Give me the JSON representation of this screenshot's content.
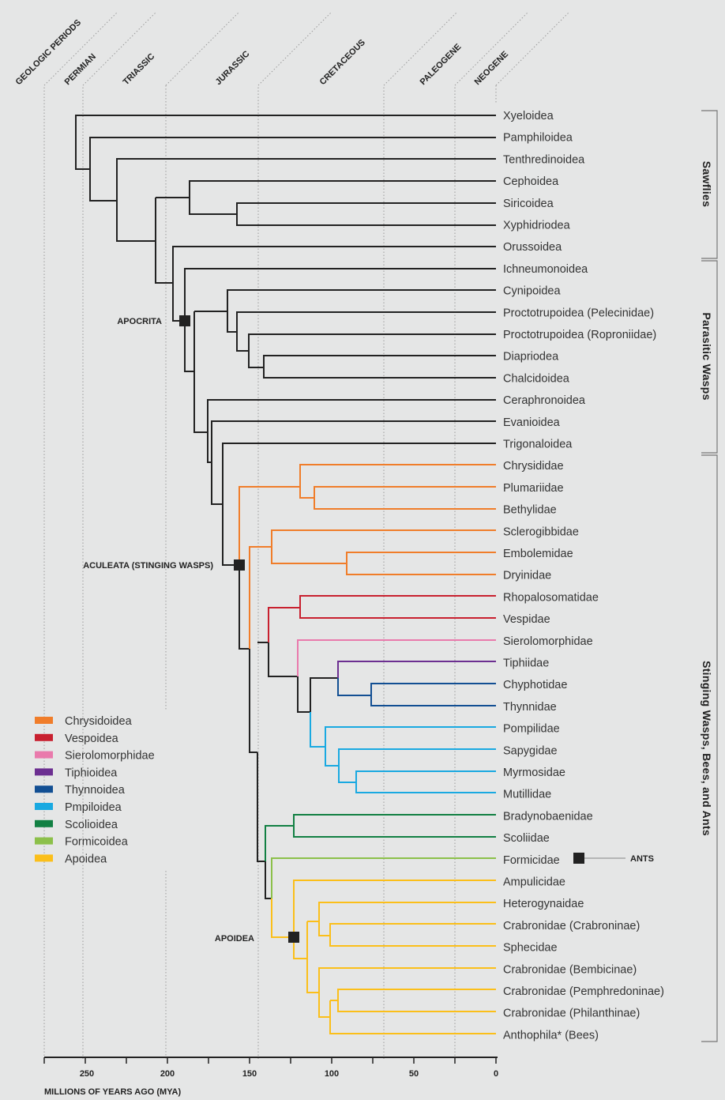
{
  "header": {
    "periods_title": "GEOLOGIC PERIODS",
    "periods": [
      "PERMIAN",
      "TRIASSIC",
      "JURASSIC",
      "CRETACEOUS",
      "PALEOGENE",
      "NEOGENE"
    ]
  },
  "axis": {
    "label": "MILLIONS OF YEARS AGO (MYA)",
    "tick_labels": [
      "250",
      "200",
      "150",
      "100",
      "50",
      "0"
    ]
  },
  "taxa": [
    "Xyeloidea",
    "Pamphiloidea",
    "Tenthredinoidea",
    "Cephoidea",
    "Siricoidea",
    "Xyphidriodea",
    "Orussoidea",
    "Ichneumonoidea",
    "Cynipoidea",
    "Proctotrupoidea (Pelecinidae)",
    "Proctotrupoidea (Roproniidae)",
    "Diapriodea",
    "Chalcidoidea",
    "Ceraphronoidea",
    "Evanioidea",
    "Trigonaloidea",
    "Chrysididae",
    "Plumariidae",
    "Bethylidae",
    "Sclerogibbidae",
    "Embolemidae",
    "Dryinidae",
    "Rhopalosomatidae",
    "Vespidae",
    "Sierolomorphidae",
    "Tiphiidae",
    "Chyphotidae",
    "Thynnidae",
    "Pompilidae",
    "Sapygidae",
    "Myrmosidae",
    "Mutillidae",
    "Bradynobaenidae",
    "Scoliidae",
    "Formicidae",
    "Ampulicidae",
    "Heterogynaidae",
    "Crabronidae (Crabroninae)",
    "Sphecidae",
    "Crabronidae (Bembicinae)",
    "Crabronidae (Pemphredoninae)",
    "Crabronidae (Philanthinae)",
    "Anthophila* (Bees)"
  ],
  "groups": [
    "Sawflies",
    "Parasitic Wasps",
    "Stinging Wasps, Bees, and Ants"
  ],
  "clade_labels": {
    "apocrita": "APOCRITA",
    "aculeata": "ACULEATA (STINGING WASPS)",
    "apoidea": "APOIDEA",
    "ants": "ANTS"
  },
  "legend": [
    {
      "label": "Chrysidoidea",
      "color": "#f07d2a"
    },
    {
      "label": "Vespoidea",
      "color": "#c8202f"
    },
    {
      "label": "Sierolomorphidae",
      "color": "#e97aac"
    },
    {
      "label": "Tiphioidea",
      "color": "#6c2f91"
    },
    {
      "label": "Thynnoidea",
      "color": "#124f93"
    },
    {
      "label": "Pmpiloidea",
      "color": "#19a9e1"
    },
    {
      "label": "Scolioidea",
      "color": "#128043"
    },
    {
      "label": "Formicoidea",
      "color": "#8cc04a"
    },
    {
      "label": "Apoidea",
      "color": "#fbbf1a"
    }
  ],
  "colors": {
    "background": "#e5e6e6",
    "base_line": "#222222"
  }
}
